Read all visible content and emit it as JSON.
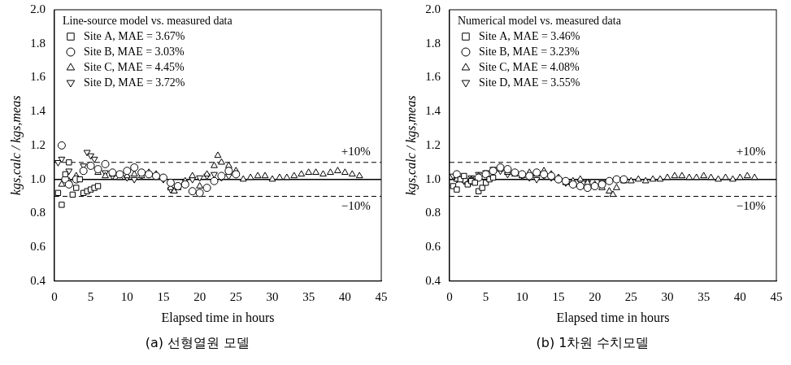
{
  "chart_data": [
    {
      "type": "scatter",
      "title": "(a) 선형열원 모델",
      "legend_title": "Line-source model vs. measured data",
      "x_label": "Elapsed time in hours",
      "y_label": "kgs,calc / kgs,meas",
      "xlim": [
        0,
        45
      ],
      "xticks": [
        0,
        5,
        10,
        15,
        20,
        25,
        30,
        35,
        40,
        45
      ],
      "ylim": [
        0.4,
        2.0
      ],
      "yticks": [
        0.4,
        0.6,
        0.8,
        {
          "value": 1.0,
          "label": "1.0"
        },
        1.2,
        1.4,
        1.6,
        1.8,
        {
          "value": 2.0,
          "label": "2.0"
        }
      ],
      "grid": false,
      "legend": "upper left",
      "reference_lines": [
        {
          "value": 1.1,
          "line_style": "dashed"
        },
        {
          "value": 1.0,
          "line_style": "solid"
        },
        {
          "value": 0.9,
          "line_style": "dashed"
        }
      ],
      "annotations": [
        {
          "text": "+10%",
          "x": 41.5,
          "y": 1.16
        },
        {
          "text": "−10%",
          "x": 41.5,
          "y": 0.84
        }
      ],
      "series": [
        {
          "name": "Site A, MAE = 3.67%",
          "color": "#000000",
          "marker": "square",
          "x": [
            0.5,
            1,
            1.5,
            2,
            2.5,
            3,
            3.5,
            4,
            4.5,
            5,
            5.5,
            6
          ],
          "values": [
            0.92,
            0.85,
            1.03,
            1.1,
            0.91,
            0.95,
            1.0,
            0.92,
            0.93,
            0.94,
            0.95,
            0.96
          ]
        },
        {
          "name": "Site B, MAE = 3.03%",
          "color": "#000000",
          "marker": "circle",
          "x": [
            1,
            1.5,
            2,
            3,
            4,
            5,
            6,
            7,
            8,
            9,
            10,
            11,
            12,
            13,
            14,
            15,
            16,
            17,
            18,
            19,
            20,
            21,
            22,
            23,
            24,
            25
          ],
          "values": [
            1.2,
            1.0,
            0.97,
            1.0,
            1.05,
            1.08,
            1.06,
            1.09,
            1.04,
            1.03,
            1.05,
            1.07,
            1.04,
            1.03,
            1.02,
            1.01,
            0.98,
            0.96,
            0.97,
            0.93,
            0.92,
            0.95,
            0.99,
            1.02,
            1.05,
            1.03
          ]
        },
        {
          "name": "Site C, MAE = 4.45%",
          "color": "#000000",
          "marker": "triangle",
          "x": [
            1,
            2,
            3,
            4,
            5,
            6,
            7,
            8,
            9,
            10,
            11,
            12,
            13,
            14,
            15,
            16,
            16.5,
            17,
            18,
            19,
            20,
            21,
            22,
            22.5,
            23,
            24,
            25,
            26,
            27,
            28,
            29,
            30,
            31,
            32,
            33,
            34,
            35,
            36,
            37,
            38,
            39,
            40,
            41,
            42
          ],
          "values": [
            0.97,
            0.99,
            1.02,
            1.05,
            1.08,
            1.04,
            1.02,
            1.03,
            1.01,
            1.02,
            1.03,
            1.02,
            1.04,
            1.03,
            1.01,
            0.95,
            0.93,
            0.95,
            0.99,
            1.02,
            0.96,
            1.03,
            1.08,
            1.14,
            1.1,
            1.08,
            1.05,
            1.0,
            1.01,
            1.02,
            1.02,
            1.0,
            1.01,
            1.01,
            1.02,
            1.03,
            1.04,
            1.04,
            1.03,
            1.04,
            1.05,
            1.04,
            1.03,
            1.02
          ]
        },
        {
          "name": "Site D, MAE = 3.72%",
          "color": "#000000",
          "marker": "triangle_down",
          "x": [
            0.5,
            1,
            2,
            3,
            4,
            4.5,
            5,
            5.5,
            6,
            7,
            8,
            9,
            10,
            11,
            12,
            13,
            14,
            15,
            16,
            17,
            18,
            19,
            20,
            21,
            22,
            23,
            24
          ],
          "values": [
            1.1,
            1.12,
            1.05,
            1.0,
            1.08,
            1.16,
            1.14,
            1.12,
            1.05,
            1.04,
            1.02,
            1.03,
            1.01,
            1.0,
            1.02,
            1.03,
            1.02,
            1.0,
            0.94,
            0.96,
            0.99,
            1.0,
            1.01,
            1.02,
            1.03,
            1.01,
            1.02
          ]
        }
      ]
    },
    {
      "type": "scatter",
      "title": "(b) 1차원 수치모델",
      "legend_title": "Numerical model vs. measured data",
      "x_label": "Elapsed time in hours",
      "y_label": "kgs,calc / kgs,meas",
      "xlim": [
        0,
        45
      ],
      "xticks": [
        0,
        5,
        10,
        15,
        20,
        25,
        30,
        35,
        40,
        45
      ],
      "ylim": [
        0.4,
        2.0
      ],
      "yticks": [
        0.4,
        0.6,
        0.8,
        {
          "value": 1.0,
          "label": "1.0"
        },
        1.2,
        1.4,
        1.6,
        1.8,
        {
          "value": 2.0,
          "label": "2.0"
        }
      ],
      "grid": false,
      "legend": "upper left",
      "reference_lines": [
        {
          "value": 1.1,
          "line_style": "dashed"
        },
        {
          "value": 1.0,
          "line_style": "solid"
        },
        {
          "value": 0.9,
          "line_style": "dashed"
        }
      ],
      "annotations": [
        {
          "text": "+10%",
          "x": 41.5,
          "y": 1.16
        },
        {
          "text": "−10%",
          "x": 41.5,
          "y": 0.84
        }
      ],
      "series": [
        {
          "name": "Site A, MAE = 3.46%",
          "color": "#000000",
          "marker": "square",
          "x": [
            0.5,
            1,
            1.5,
            2,
            2.5,
            3,
            3.5,
            4,
            4.5,
            5,
            5.5,
            6
          ],
          "values": [
            0.96,
            0.94,
            1.0,
            1.02,
            0.97,
            0.99,
            0.98,
            0.93,
            0.95,
            0.98,
            1.0,
            1.01
          ]
        },
        {
          "name": "Site B, MAE = 3.23%",
          "color": "#000000",
          "marker": "circle",
          "x": [
            1,
            2,
            3,
            4,
            5,
            6,
            7,
            8,
            9,
            10,
            11,
            12,
            13,
            14,
            15,
            16,
            17,
            18,
            19,
            20,
            21,
            22,
            23,
            24
          ],
          "values": [
            1.03,
            1.0,
            0.99,
            1.01,
            1.03,
            1.05,
            1.07,
            1.06,
            1.04,
            1.03,
            1.02,
            1.04,
            1.03,
            1.02,
            1.0,
            0.99,
            0.97,
            0.96,
            0.95,
            0.96,
            0.97,
            0.99,
            1.0,
            1.0
          ]
        },
        {
          "name": "Site C, MAE = 4.08%",
          "color": "#000000",
          "marker": "triangle",
          "x": [
            1,
            2,
            3,
            4,
            5,
            6,
            7,
            8,
            9,
            10,
            11,
            12,
            13,
            14,
            15,
            16,
            17,
            18,
            19,
            20,
            21,
            22,
            22.5,
            23,
            24,
            25,
            26,
            27,
            28,
            29,
            30,
            31,
            32,
            33,
            34,
            35,
            36,
            37,
            38,
            39,
            40,
            41,
            42
          ],
          "values": [
            1.0,
            1.01,
            1.0,
            1.02,
            1.03,
            1.05,
            1.06,
            1.04,
            1.03,
            1.02,
            1.04,
            1.03,
            1.05,
            1.03,
            1.01,
            0.98,
            0.99,
            1.0,
            0.98,
            0.97,
            0.95,
            0.93,
            0.91,
            0.95,
            0.99,
            0.99,
            1.0,
            0.99,
            1.0,
            1.0,
            1.01,
            1.02,
            1.02,
            1.01,
            1.01,
            1.02,
            1.01,
            1.0,
            1.01,
            1.0,
            1.01,
            1.02,
            1.01
          ]
        },
        {
          "name": "Site D, MAE = 3.55%",
          "color": "#000000",
          "marker": "triangle_down",
          "x": [
            0.5,
            1,
            2,
            3,
            4,
            5,
            6,
            7,
            8,
            9,
            10,
            11,
            12,
            13,
            14,
            15,
            16,
            17,
            18,
            19,
            20,
            21,
            22,
            23,
            24
          ],
          "values": [
            1.02,
            1.0,
            0.99,
            1.01,
            1.03,
            1.04,
            1.06,
            1.05,
            1.03,
            1.04,
            1.02,
            1.01,
            1.0,
            1.02,
            1.01,
            1.0,
            0.98,
            0.97,
            0.99,
            0.98,
            0.96,
            0.98,
            0.99,
            1.0,
            1.0
          ]
        }
      ]
    }
  ]
}
